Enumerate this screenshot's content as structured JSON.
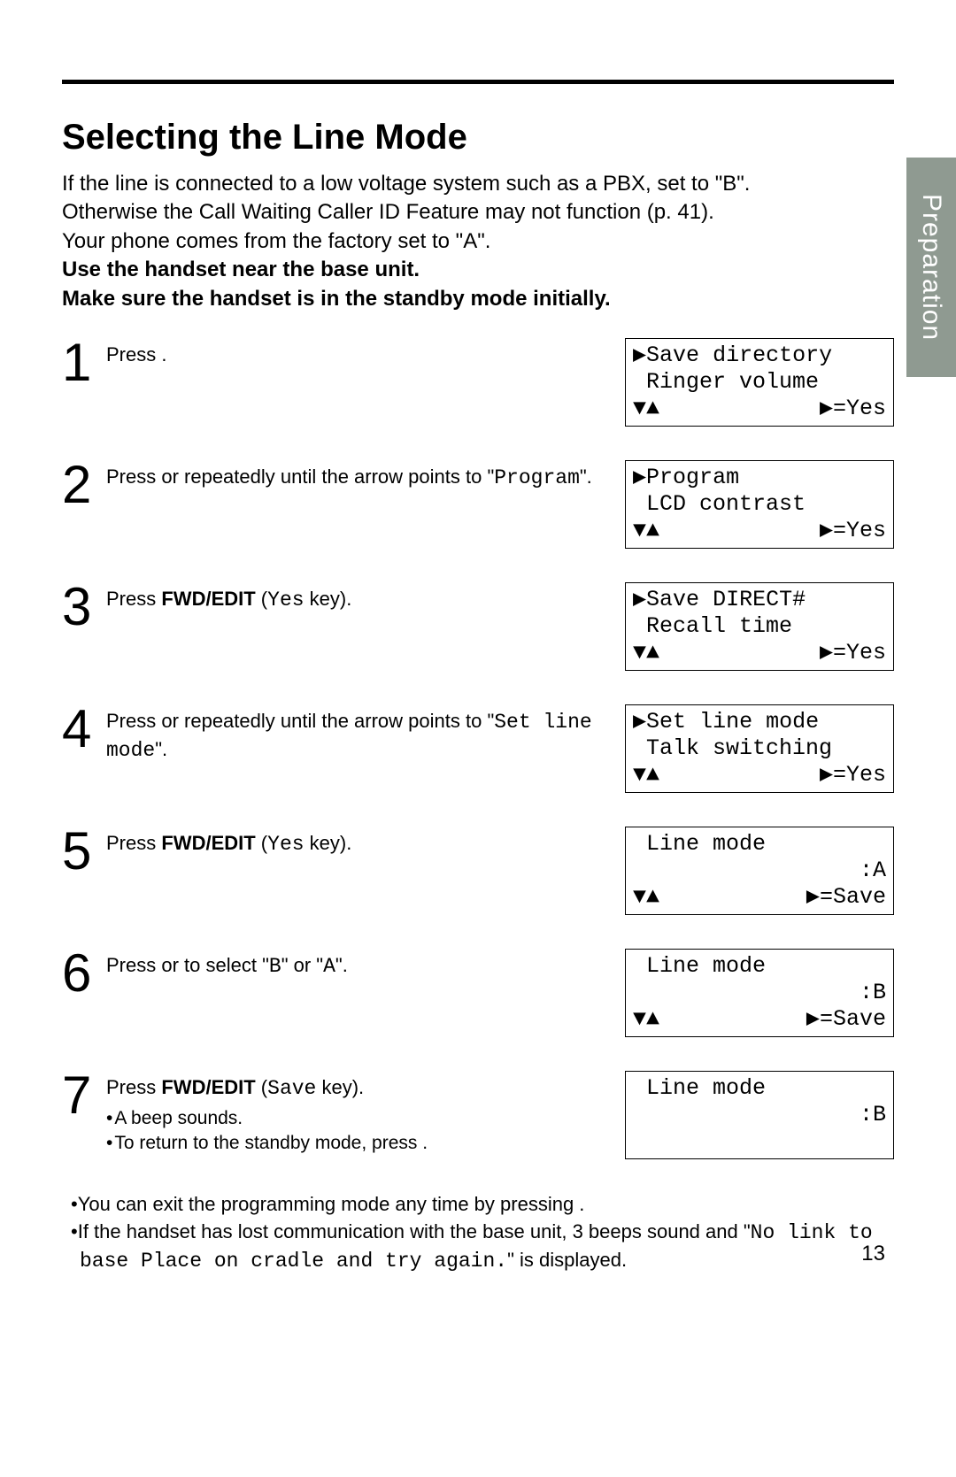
{
  "tab_label": "Preparation",
  "heading": "Selecting the Line Mode",
  "intro_lines": [
    "If the line is connected to a low voltage system such as a PBX, set to \"B\".",
    "Otherwise the Call Waiting Caller ID Feature may not function (p. 41).",
    "Your phone comes from the factory set to \"A\"."
  ],
  "intro_bold_lines": [
    "Use the handset near the base unit.",
    "Make sure the handset is in the standby mode initially."
  ],
  "steps": [
    {
      "num": "1",
      "text_parts": [
        {
          "t": "Press",
          "cls": ""
        },
        {
          "t": " .",
          "cls": ""
        }
      ],
      "lcd": {
        "l1_left": "▶Save directory",
        "l1_right": "",
        "l2_left": " Ringer volume",
        "l2_right": "",
        "l3_left": "▼▲",
        "l3_right": "▶=Yes"
      }
    },
    {
      "num": "2",
      "text_parts": [
        {
          "t": "Press   or   repeatedly until the arrow points to \"",
          "cls": ""
        },
        {
          "t": "Program",
          "cls": "mono"
        },
        {
          "t": "\".",
          "cls": ""
        }
      ],
      "lcd": {
        "l1_left": "▶Program",
        "l1_right": "",
        "l2_left": " LCD contrast",
        "l2_right": "",
        "l3_left": "▼▲",
        "l3_right": "▶=Yes"
      }
    },
    {
      "num": "3",
      "text_parts": [
        {
          "t": "Press ",
          "cls": ""
        },
        {
          "t": "FWD/EDIT",
          "cls": "bold"
        },
        {
          "t": "   (",
          "cls": ""
        },
        {
          "t": "Yes",
          "cls": "mono"
        },
        {
          "t": " key).",
          "cls": ""
        }
      ],
      "lcd": {
        "l1_left": "▶Save DIRECT#",
        "l1_right": "",
        "l2_left": " Recall time",
        "l2_right": "",
        "l3_left": "▼▲",
        "l3_right": "▶=Yes"
      }
    },
    {
      "num": "4",
      "text_parts": [
        {
          "t": "Press   or   repeatedly until the arrow points to \"",
          "cls": ""
        },
        {
          "t": "Set line mode",
          "cls": "mono"
        },
        {
          "t": "\".",
          "cls": ""
        }
      ],
      "lcd": {
        "l1_left": "▶Set line mode",
        "l1_right": "",
        "l2_left": " Talk switching",
        "l2_right": "",
        "l3_left": "▼▲",
        "l3_right": "▶=Yes"
      }
    },
    {
      "num": "5",
      "text_parts": [
        {
          "t": "Press ",
          "cls": ""
        },
        {
          "t": "FWD/EDIT",
          "cls": "bold"
        },
        {
          "t": "   (",
          "cls": ""
        },
        {
          "t": "Yes",
          "cls": "mono"
        },
        {
          "t": " key).",
          "cls": ""
        }
      ],
      "lcd": {
        "l1_left": " Line mode",
        "l1_right": "",
        "l2_left": "",
        "l2_right": ":A",
        "l3_left": "▼▲",
        "l3_right": "▶=Save"
      }
    },
    {
      "num": "6",
      "text_parts": [
        {
          "t": "Press   or   to select \"",
          "cls": ""
        },
        {
          "t": "B",
          "cls": "mono"
        },
        {
          "t": "\" or \"",
          "cls": ""
        },
        {
          "t": "A",
          "cls": "mono"
        },
        {
          "t": "\".",
          "cls": ""
        }
      ],
      "lcd": {
        "l1_left": " Line mode",
        "l1_right": "",
        "l2_left": "",
        "l2_right": ":B",
        "l3_left": "▼▲",
        "l3_right": "▶=Save"
      }
    },
    {
      "num": "7",
      "text_parts": [
        {
          "t": "Press ",
          "cls": ""
        },
        {
          "t": "FWD/EDIT",
          "cls": "bold"
        },
        {
          "t": "   (",
          "cls": ""
        },
        {
          "t": "Save",
          "cls": "mono"
        },
        {
          "t": " key).",
          "cls": ""
        }
      ],
      "bullets": [
        "A beep sounds.",
        "To return to the standby mode, press ."
      ],
      "lcd": {
        "l1_left": " Line mode",
        "l1_right": "",
        "l2_left": "",
        "l2_right": ":B",
        "l3_left": " ",
        "l3_right": " "
      }
    }
  ],
  "notes": [
    {
      "parts": [
        {
          "t": "You can exit the programming mode any time by pressing .",
          "cls": ""
        }
      ]
    },
    {
      "parts": [
        {
          "t": "If the handset has lost communication with the base unit, 3 beeps sound and \"",
          "cls": ""
        },
        {
          "t": "No link to base Place on cradle and try again.",
          "cls": "mono"
        },
        {
          "t": "\" is displayed.",
          "cls": ""
        }
      ]
    }
  ],
  "page_number": "13"
}
